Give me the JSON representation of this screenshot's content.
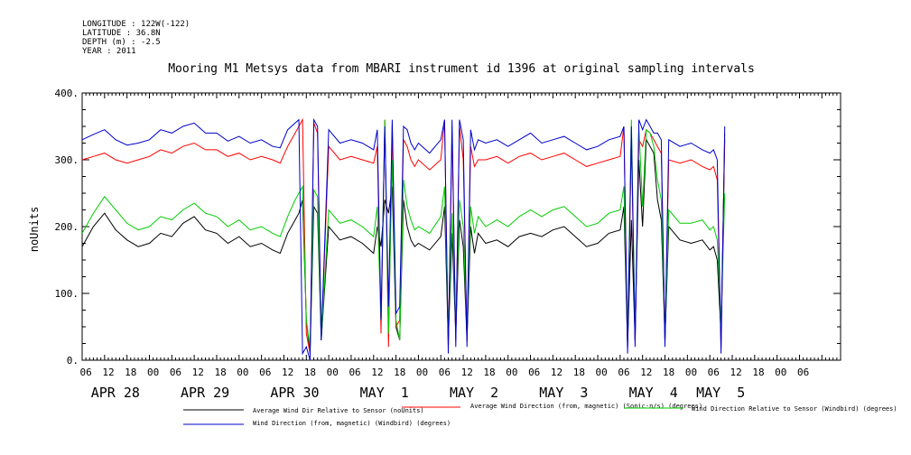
{
  "header": {
    "longitude": "LONGITUDE : 122W(-122)",
    "latitude": "LATITUDE : 36.8N",
    "depth": "DEPTH (m) : -2.5",
    "year": "YEAR : 2011"
  },
  "chart_data": {
    "type": "line",
    "title": "Mooring M1 Metsys data from MBARI instrument id 1396 at original sampling intervals",
    "ylabel": "noUnits",
    "xlabel": "",
    "ylim": [
      0,
      400
    ],
    "xlim_hours": [
      0,
      203
    ],
    "y_ticks": [
      "0.",
      "100.",
      "200.",
      "300.",
      "400."
    ],
    "y_tick_values": [
      0,
      100,
      200,
      300,
      400
    ],
    "hour_ticks": [
      "06",
      "12",
      "18",
      "00",
      "06",
      "12",
      "18",
      "00",
      "06",
      "12",
      "18",
      "00",
      "06",
      "12",
      "18",
      "00",
      "06",
      "12",
      "18",
      "00",
      "06",
      "12",
      "18",
      "00",
      "06",
      "12",
      "18",
      "00",
      "06",
      "12",
      "18",
      "00",
      "06"
    ],
    "day_labels": [
      {
        "label": "APR 28",
        "hour": 6
      },
      {
        "label": "APR 29",
        "hour": 30
      },
      {
        "label": "APR 30",
        "hour": 54
      },
      {
        "label": "MAY  1",
        "hour": 78
      },
      {
        "label": "MAY  2",
        "hour": 102
      },
      {
        "label": "MAY  3",
        "hour": 126
      },
      {
        "label": "MAY  4",
        "hour": 150
      },
      {
        "label": "MAY  5",
        "hour": 168
      }
    ],
    "grid": false,
    "legend_position": "bottom",
    "series": [
      {
        "name": "Average Wind Dir Relative to Sensor (noUnits)",
        "color": "#000000",
        "x": [
          0,
          3,
          6,
          9,
          12,
          15,
          18,
          21,
          24,
          27,
          30,
          33,
          36,
          39,
          42,
          45,
          48,
          51,
          53,
          55,
          57,
          58,
          59,
          60,
          61,
          62,
          63,
          64,
          66,
          69,
          72,
          75,
          78,
          79,
          80,
          81,
          82,
          83,
          84,
          85,
          86,
          87,
          88,
          89,
          90,
          93,
          96,
          97,
          98,
          99,
          100,
          101,
          102,
          103,
          104,
          105,
          106,
          108,
          111,
          114,
          117,
          120,
          123,
          126,
          129,
          132,
          135,
          138,
          141,
          144,
          145,
          146,
          147,
          148,
          149,
          150,
          151,
          152,
          153,
          154,
          155,
          156,
          157,
          160,
          163,
          166,
          168,
          169,
          170,
          171,
          172
        ],
        "values": [
          170,
          200,
          220,
          195,
          180,
          170,
          175,
          190,
          185,
          205,
          215,
          195,
          190,
          175,
          185,
          170,
          175,
          165,
          160,
          190,
          210,
          220,
          240,
          60,
          10,
          230,
          220,
          30,
          200,
          180,
          185,
          175,
          160,
          200,
          170,
          240,
          220,
          260,
          50,
          30,
          240,
          200,
          180,
          170,
          175,
          165,
          185,
          230,
          30,
          190,
          40,
          210,
          170,
          30,
          200,
          160,
          190,
          175,
          180,
          170,
          185,
          190,
          185,
          195,
          200,
          185,
          170,
          175,
          190,
          195,
          230,
          20,
          210,
          30,
          300,
          200,
          330,
          320,
          310,
          240,
          210,
          30,
          200,
          180,
          175,
          180,
          165,
          170,
          150,
          40,
          330
        ]
      },
      {
        "name": "Average Wind Direction (from, magnetic) (Sonic-n/s) (degrees)",
        "color": "#ff0000",
        "x": [
          0,
          3,
          6,
          9,
          12,
          15,
          18,
          21,
          24,
          27,
          30,
          33,
          36,
          39,
          42,
          45,
          48,
          51,
          53,
          55,
          57,
          58,
          59,
          60,
          61,
          62,
          63,
          64,
          66,
          69,
          72,
          75,
          78,
          79,
          80,
          81,
          82,
          83,
          84,
          85,
          86,
          87,
          88,
          89,
          90,
          93,
          96,
          97,
          98,
          99,
          100,
          101,
          102,
          103,
          104,
          105,
          106,
          108,
          111,
          114,
          117,
          120,
          123,
          126,
          129,
          132,
          135,
          138,
          141,
          144,
          145,
          146,
          147,
          148,
          149,
          150,
          151,
          152,
          153,
          154,
          155,
          156,
          157,
          160,
          163,
          166,
          168,
          169,
          170,
          171,
          172
        ],
        "values": [
          300,
          305,
          310,
          300,
          295,
          300,
          305,
          315,
          310,
          320,
          325,
          315,
          315,
          305,
          310,
          300,
          305,
          300,
          295,
          320,
          340,
          350,
          360,
          40,
          10,
          355,
          340,
          30,
          320,
          300,
          305,
          300,
          295,
          320,
          40,
          360,
          20,
          350,
          50,
          60,
          330,
          320,
          300,
          290,
          300,
          285,
          300,
          360,
          20,
          340,
          30,
          350,
          300,
          30,
          320,
          290,
          300,
          300,
          305,
          295,
          305,
          310,
          300,
          305,
          310,
          300,
          290,
          295,
          300,
          305,
          350,
          20,
          330,
          30,
          330,
          320,
          345,
          340,
          330,
          320,
          310,
          30,
          300,
          295,
          300,
          290,
          285,
          290,
          270,
          20,
          340
        ]
      },
      {
        "name": "Wind Direction Relative to Sensor (Windbird) (degrees)",
        "color": "#00cc00",
        "x": [
          0,
          3,
          6,
          9,
          12,
          15,
          18,
          21,
          24,
          27,
          30,
          33,
          36,
          39,
          42,
          45,
          48,
          51,
          53,
          55,
          57,
          58,
          59,
          60,
          61,
          62,
          63,
          64,
          66,
          69,
          72,
          75,
          78,
          79,
          80,
          81,
          82,
          83,
          84,
          85,
          86,
          87,
          88,
          89,
          90,
          93,
          96,
          97,
          98,
          99,
          100,
          101,
          102,
          103,
          104,
          105,
          106,
          108,
          111,
          114,
          117,
          120,
          123,
          126,
          129,
          132,
          135,
          138,
          141,
          144,
          145,
          146,
          147,
          148,
          149,
          150,
          151,
          152,
          153,
          154,
          155,
          156,
          157,
          160,
          163,
          166,
          168,
          169,
          170,
          171,
          172
        ],
        "values": [
          190,
          220,
          245,
          225,
          205,
          195,
          200,
          215,
          210,
          225,
          235,
          220,
          215,
          200,
          210,
          195,
          200,
          190,
          185,
          215,
          240,
          250,
          260,
          60,
          20,
          255,
          245,
          30,
          225,
          205,
          210,
          200,
          185,
          230,
          60,
          360,
          40,
          300,
          60,
          30,
          270,
          230,
          210,
          195,
          200,
          190,
          215,
          260,
          40,
          220,
          50,
          240,
          200,
          40,
          230,
          190,
          215,
          200,
          210,
          200,
          215,
          225,
          215,
          225,
          230,
          215,
          200,
          205,
          220,
          225,
          260,
          30,
          360,
          40,
          350,
          230,
          345,
          340,
          320,
          270,
          240,
          30,
          225,
          205,
          205,
          210,
          195,
          200,
          180,
          50,
          250
        ]
      },
      {
        "name": "Wind Direction (from, magnetic) (Windbird) (degrees)",
        "color": "#0000cc",
        "x": [
          0,
          3,
          6,
          9,
          12,
          15,
          18,
          21,
          24,
          27,
          30,
          33,
          36,
          39,
          42,
          45,
          48,
          51,
          53,
          55,
          57,
          58,
          59,
          60,
          61,
          62,
          63,
          64,
          66,
          69,
          72,
          75,
          78,
          79,
          80,
          81,
          82,
          83,
          84,
          85,
          86,
          87,
          88,
          89,
          90,
          93,
          96,
          97,
          98,
          99,
          100,
          101,
          102,
          103,
          104,
          105,
          106,
          108,
          111,
          114,
          117,
          120,
          123,
          126,
          129,
          132,
          135,
          138,
          141,
          144,
          145,
          146,
          147,
          148,
          149,
          150,
          151,
          152,
          153,
          154,
          155,
          156,
          157,
          160,
          163,
          166,
          168,
          169,
          170,
          171,
          172
        ],
        "values": [
          330,
          338,
          345,
          330,
          322,
          325,
          330,
          345,
          340,
          350,
          355,
          340,
          340,
          328,
          335,
          325,
          330,
          320,
          318,
          345,
          355,
          360,
          10,
          20,
          0,
          360,
          350,
          30,
          345,
          325,
          330,
          325,
          315,
          345,
          60,
          350,
          80,
          360,
          70,
          80,
          350,
          345,
          325,
          315,
          325,
          310,
          330,
          360,
          10,
          360,
          20,
          360,
          330,
          20,
          345,
          315,
          330,
          325,
          330,
          320,
          330,
          340,
          325,
          330,
          335,
          325,
          315,
          320,
          330,
          335,
          350,
          10,
          350,
          20,
          360,
          345,
          360,
          350,
          340,
          340,
          330,
          20,
          330,
          320,
          325,
          315,
          310,
          315,
          300,
          10,
          350
        ]
      }
    ]
  }
}
